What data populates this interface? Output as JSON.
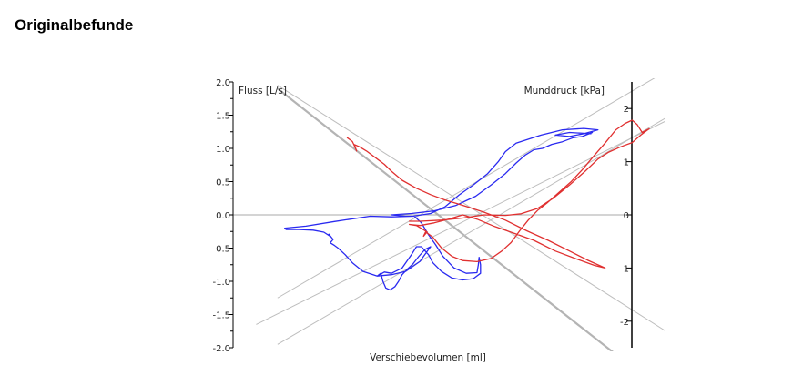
{
  "heading": "Originalbefunde",
  "chart_data": {
    "type": "line",
    "xlabel": "Verschiebevolumen [ml]",
    "ylabel_left": "Fluss [L/s]",
    "ylabel_right": "Munddruck [kPa]",
    "ylim_left": [
      -2.0,
      2.0
    ],
    "ylim_right": [
      -2.5,
      2.5
    ],
    "left_ticks": [
      "2.0",
      "1.5",
      "1.0",
      "0.5",
      "0.0",
      "-0.5",
      "-1.0",
      "-1.5",
      "-2.0"
    ],
    "left_tick_values": [
      2.0,
      1.5,
      1.0,
      0.5,
      0.0,
      -0.5,
      -1.0,
      -1.5,
      -2.0
    ],
    "right_ticks": [
      "2",
      "1",
      "0",
      "-1",
      "-2"
    ],
    "right_tick_values": [
      2,
      1,
      0,
      -1,
      -2
    ],
    "xlim": [
      -160,
      400
    ],
    "grid": false,
    "colors": {
      "flow": "#2a2af0",
      "pressure": "#e03030",
      "reference": "#bdbdbd",
      "reference_bold": "#b4b4b4",
      "axis": "#000000",
      "zero": "#a8a8a8"
    },
    "reference_lines": [
      {
        "p1": [
          -160,
          1.9
        ],
        "p2": [
          315,
          -2.1
        ],
        "bold": true
      },
      {
        "p1": [
          -160,
          1.95
        ],
        "p2": [
          400,
          -1.85
        ],
        "bold": false
      },
      {
        "p1": [
          -160,
          -1.25
        ],
        "p2": [
          400,
          2.25
        ],
        "bold": false
      },
      {
        "p1": [
          -190,
          -1.65
        ],
        "p2": [
          430,
          1.65
        ],
        "bold": false
      },
      {
        "p1": [
          -160,
          -1.95
        ],
        "p2": [
          400,
          1.55
        ],
        "bold": false
      }
    ],
    "series": [
      {
        "axis": "left",
        "color": "#2a2af0",
        "points": [
          [
            280,
            1.22
          ],
          [
            250,
            1.24
          ],
          [
            230,
            1.2
          ],
          [
            250,
            1.18
          ],
          [
            270,
            1.22
          ],
          [
            290,
            1.28
          ],
          [
            270,
            1.3
          ],
          [
            240,
            1.28
          ],
          [
            210,
            1.2
          ],
          [
            175,
            1.08
          ],
          [
            160,
            0.95
          ],
          [
            150,
            0.8
          ],
          [
            135,
            0.62
          ],
          [
            115,
            0.45
          ],
          [
            95,
            0.3
          ],
          [
            75,
            0.12
          ],
          [
            55,
            0.02
          ],
          [
            30,
            -0.02
          ],
          [
            0,
            -0.03
          ],
          [
            -30,
            -0.02
          ],
          [
            -80,
            -0.1
          ],
          [
            -120,
            -0.17
          ],
          [
            -150,
            -0.2
          ],
          [
            -148,
            -0.22
          ],
          [
            -130,
            -0.22
          ],
          [
            -110,
            -0.23
          ],
          [
            -95,
            -0.26
          ],
          [
            -85,
            -0.33
          ],
          [
            -88,
            -0.29
          ],
          [
            -82,
            -0.37
          ],
          [
            -86,
            -0.42
          ],
          [
            -80,
            -0.46
          ],
          [
            -75,
            -0.5
          ],
          [
            -65,
            -0.6
          ],
          [
            -55,
            -0.72
          ],
          [
            -40,
            -0.85
          ],
          [
            -20,
            -0.92
          ],
          [
            0,
            -0.9
          ],
          [
            20,
            -0.85
          ],
          [
            40,
            -0.7
          ],
          [
            52,
            -0.52
          ],
          [
            55,
            -0.48
          ],
          [
            47,
            -0.52
          ],
          [
            38,
            -0.63
          ],
          [
            30,
            -0.74
          ],
          [
            22,
            -0.82
          ],
          [
            15,
            -0.9
          ],
          [
            10,
            -1.0
          ],
          [
            5,
            -1.08
          ],
          [
            -2,
            -1.13
          ],
          [
            -8,
            -1.1
          ],
          [
            -12,
            -1.0
          ],
          [
            -15,
            -0.88
          ],
          [
            -20,
            -0.92
          ],
          [
            -10,
            -0.86
          ],
          [
            0,
            -0.88
          ],
          [
            15,
            -0.8
          ],
          [
            28,
            -0.6
          ],
          [
            35,
            -0.48
          ],
          [
            42,
            -0.48
          ],
          [
            52,
            -0.6
          ],
          [
            58,
            -0.72
          ],
          [
            70,
            -0.85
          ],
          [
            85,
            -0.95
          ],
          [
            100,
            -0.98
          ],
          [
            115,
            -0.96
          ],
          [
            125,
            -0.88
          ],
          [
            125,
            -0.75
          ],
          [
            123,
            -0.64
          ],
          [
            122,
            -0.75
          ],
          [
            120,
            -0.87
          ],
          [
            105,
            -0.88
          ],
          [
            88,
            -0.8
          ],
          [
            72,
            -0.62
          ],
          [
            62,
            -0.45
          ],
          [
            52,
            -0.3
          ],
          [
            42,
            -0.12
          ],
          [
            32,
            -0.02
          ],
          [
            20,
            -0.02
          ],
          [
            0,
            0.0
          ],
          [
            28,
            0.02
          ],
          [
            60,
            0.06
          ],
          [
            90,
            0.14
          ],
          [
            118,
            0.28
          ],
          [
            140,
            0.45
          ],
          [
            160,
            0.62
          ],
          [
            175,
            0.78
          ],
          [
            188,
            0.9
          ],
          [
            200,
            0.98
          ],
          [
            212,
            1.0
          ],
          [
            225,
            1.06
          ],
          [
            240,
            1.1
          ],
          [
            255,
            1.16
          ],
          [
            268,
            1.18
          ],
          [
            282,
            1.24
          ]
        ]
      },
      {
        "axis": "right",
        "color": "#e03030",
        "points": [
          [
            -62,
            1.45
          ],
          [
            -55,
            1.38
          ],
          [
            -52,
            1.3
          ],
          [
            -49,
            1.2
          ],
          [
            -52,
            1.32
          ],
          [
            -45,
            1.28
          ],
          [
            -35,
            1.2
          ],
          [
            -20,
            1.05
          ],
          [
            -10,
            0.95
          ],
          [
            0,
            0.82
          ],
          [
            15,
            0.65
          ],
          [
            35,
            0.5
          ],
          [
            55,
            0.38
          ],
          [
            75,
            0.28
          ],
          [
            100,
            0.18
          ],
          [
            130,
            0.05
          ],
          [
            160,
            -0.1
          ],
          [
            190,
            -0.3
          ],
          [
            220,
            -0.48
          ],
          [
            250,
            -0.68
          ],
          [
            275,
            -0.85
          ],
          [
            300,
            -1.0
          ],
          [
            285,
            -0.95
          ],
          [
            260,
            -0.83
          ],
          [
            230,
            -0.68
          ],
          [
            200,
            -0.48
          ],
          [
            175,
            -0.36
          ],
          [
            145,
            -0.22
          ],
          [
            120,
            -0.08
          ],
          [
            100,
            0.0
          ],
          [
            80,
            -0.08
          ],
          [
            60,
            -0.15
          ],
          [
            40,
            -0.2
          ],
          [
            25,
            -0.18
          ],
          [
            35,
            -0.2
          ],
          [
            50,
            -0.32
          ],
          [
            45,
            -0.4
          ],
          [
            48,
            -0.32
          ],
          [
            58,
            -0.42
          ],
          [
            70,
            -0.62
          ],
          [
            85,
            -0.78
          ],
          [
            100,
            -0.86
          ],
          [
            120,
            -0.88
          ],
          [
            140,
            -0.82
          ],
          [
            155,
            -0.68
          ],
          [
            168,
            -0.52
          ],
          [
            180,
            -0.3
          ],
          [
            192,
            -0.1
          ],
          [
            205,
            0.08
          ],
          [
            218,
            0.22
          ],
          [
            235,
            0.42
          ],
          [
            252,
            0.62
          ],
          [
            268,
            0.85
          ],
          [
            285,
            1.12
          ],
          [
            300,
            1.35
          ],
          [
            315,
            1.6
          ],
          [
            328,
            1.72
          ],
          [
            338,
            1.78
          ],
          [
            345,
            1.7
          ],
          [
            352,
            1.55
          ],
          [
            362,
            1.62
          ],
          [
            350,
            1.5
          ],
          [
            338,
            1.36
          ],
          [
            322,
            1.28
          ],
          [
            305,
            1.18
          ],
          [
            290,
            1.05
          ],
          [
            272,
            0.82
          ],
          [
            250,
            0.56
          ],
          [
            228,
            0.32
          ],
          [
            205,
            0.12
          ],
          [
            182,
            0.02
          ],
          [
            160,
            -0.01
          ],
          [
            130,
            0.0
          ],
          [
            100,
            -0.06
          ],
          [
            70,
            -0.1
          ],
          [
            40,
            -0.12
          ],
          [
            25,
            -0.12
          ]
        ]
      }
    ]
  }
}
